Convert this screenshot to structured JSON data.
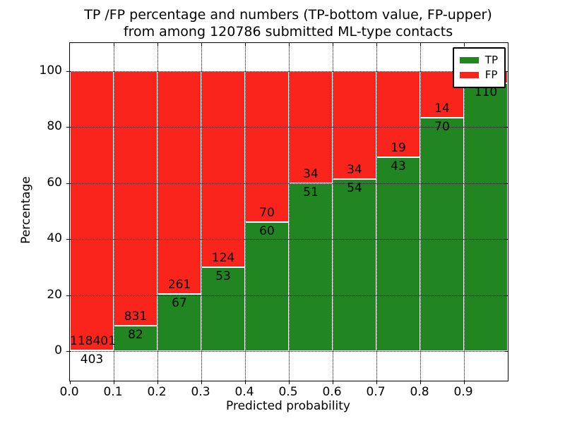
{
  "title": {
    "line1": "TP /FP percentage and numbers (TP-bottom value, FP-upper)",
    "line2": "from among 120786 submitted ML-type contacts"
  },
  "axes": {
    "xlabel": "Predicted probability",
    "ylabel": "Percentage",
    "x_tick_labels": [
      "0.0",
      "0.1",
      "0.2",
      "0.3",
      "0.4",
      "0.5",
      "0.6",
      "0.7",
      "0.8",
      "0.9"
    ],
    "y_tick_labels": [
      "0",
      "20",
      "40",
      "60",
      "80",
      "100"
    ],
    "y_tick_values": [
      0,
      20,
      40,
      60,
      80,
      100
    ],
    "grid_style": "dotted"
  },
  "legend": {
    "position": "upper-right",
    "items": [
      {
        "label": "TP",
        "color": "#218621"
      },
      {
        "label": "FP",
        "color": "#f9251c"
      }
    ]
  },
  "colors": {
    "tp": "#218621",
    "fp": "#f9251c",
    "bar_edge": "#ffffff",
    "axis": "#000000",
    "background": "#ffffff"
  },
  "chart_data": {
    "type": "bar",
    "stacked": true,
    "title": "TP /FP percentage and numbers (TP-bottom value, FP-upper) from among 120786 submitted ML-type contacts",
    "xlabel": "Predicted probability",
    "ylabel": "Percentage",
    "total_shown_in_title": 120786,
    "xlim": [
      0.0,
      1.0
    ],
    "ylim": [
      -10.6,
      110.1
    ],
    "bin_width": 0.1,
    "categories": [
      "0.0",
      "0.1",
      "0.2",
      "0.3",
      "0.4",
      "0.5",
      "0.6",
      "0.7",
      "0.8",
      "0.9"
    ],
    "series": [
      {
        "name": "TP",
        "color": "#218621",
        "counts": [
          403,
          82,
          67,
          53,
          60,
          51,
          54,
          43,
          70,
          110
        ],
        "count_labels": [
          "403",
          "82",
          "67",
          "53",
          "60",
          "51",
          "54",
          "43",
          "70",
          "110"
        ],
        "pct": [
          0.34,
          8.98,
          20.43,
          29.94,
          46.15,
          60.0,
          61.36,
          69.35,
          83.33,
          95.65
        ]
      },
      {
        "name": "FP",
        "color": "#f9251c",
        "counts": [
          118401,
          831,
          261,
          124,
          70,
          34,
          34,
          19,
          14,
          null
        ],
        "count_labels": [
          "118401",
          "831",
          "261",
          "124",
          "70",
          "34",
          "34",
          "19",
          "14",
          ""
        ],
        "pct": [
          99.66,
          91.02,
          79.57,
          70.06,
          53.85,
          40.0,
          38.64,
          30.65,
          16.67,
          4.35
        ]
      }
    ],
    "legend_entries": [
      "TP",
      "FP"
    ],
    "grid": "dotted",
    "note": "FP count label of last bin occluded by legend box"
  }
}
